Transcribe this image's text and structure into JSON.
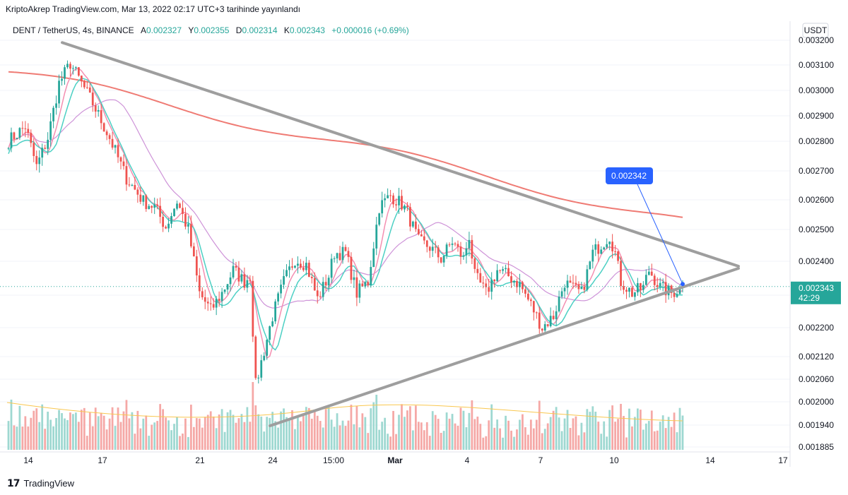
{
  "header": {
    "text": "KriptoAkrep TradingView.com, Mar 13, 2022 02:17 UTC+3 tarihinde yayınlandı"
  },
  "legend": {
    "symbol": "DENT / TetherUS, 4s, BINANCE",
    "open_label": "A",
    "open": "0.002327",
    "high_label": "Y",
    "high": "0.002355",
    "low_label": "D",
    "low": "0.002314",
    "close_label": "K",
    "close": "0.002343",
    "change": "+0.000016 (+0.69%)"
  },
  "axis": {
    "currency": "USDT"
  },
  "price_badge": {
    "value": "0.002343",
    "timer": "42:29"
  },
  "annotation": {
    "value": "0.002342"
  },
  "footer": {
    "brand": "TradingView"
  },
  "colors": {
    "up": "#26a69a",
    "down": "#ef5350",
    "trendline": "#9e9e9e",
    "ma_slow": "#ef7b74",
    "ma_mid": "#ce93d8",
    "accent": "#2962ff"
  },
  "chart_data": {
    "type": "candlestick",
    "y_ticks": [
      0.0032,
      0.0031,
      0.003,
      0.0029,
      0.0028,
      0.0027,
      0.0026,
      0.0025,
      0.0024,
      0.0023,
      0.0022,
      0.00212,
      0.00206,
      0.002,
      0.00194,
      0.001885
    ],
    "y_tick_labels": [
      "0.003200",
      "0.003100",
      "0.003000",
      "0.002900",
      "0.002800",
      "0.002700",
      "0.002600",
      "0.002500",
      "0.002400",
      "0.002300",
      "0.002200",
      "0.002120",
      "0.002060",
      "0.002000",
      "0.001940",
      "0.001885"
    ],
    "x_tick_labels": [
      "14",
      "17",
      "21",
      "24",
      "15:00",
      "Mar",
      "4",
      "7",
      "10",
      "14",
      "17"
    ],
    "triangle": {
      "upper_line": {
        "from": 0.003192,
        "to": 0.00238
      },
      "lower_line": {
        "from": 0.00194,
        "to": 0.00238
      }
    },
    "waypoints": [
      [
        0,
        0.00285
      ],
      [
        6,
        0.0029
      ],
      [
        10,
        0.00276
      ],
      [
        14,
        0.00286
      ],
      [
        18,
        0.00305
      ],
      [
        22,
        0.00312
      ],
      [
        26,
        0.00305
      ],
      [
        30,
        0.00298
      ],
      [
        36,
        0.00286
      ],
      [
        42,
        0.00272
      ],
      [
        48,
        0.00264
      ],
      [
        52,
        0.00262
      ],
      [
        56,
        0.00255
      ],
      [
        60,
        0.00264
      ],
      [
        64,
        0.00254
      ],
      [
        68,
        0.00232
      ],
      [
        72,
        0.00226
      ],
      [
        76,
        0.00232
      ],
      [
        80,
        0.0024
      ],
      [
        84,
        0.00236
      ],
      [
        86,
        0.00238
      ],
      [
        88,
        0.002
      ],
      [
        90,
        0.00208
      ],
      [
        94,
        0.00224
      ],
      [
        98,
        0.00236
      ],
      [
        102,
        0.00244
      ],
      [
        106,
        0.00242
      ],
      [
        110,
        0.0023
      ],
      [
        114,
        0.00238
      ],
      [
        116,
        0.00246
      ],
      [
        120,
        0.00246
      ],
      [
        124,
        0.00232
      ],
      [
        128,
        0.00236
      ],
      [
        132,
        0.00262
      ],
      [
        136,
        0.00266
      ],
      [
        140,
        0.00263
      ],
      [
        142,
        0.0026
      ],
      [
        146,
        0.0025
      ],
      [
        150,
        0.00248
      ],
      [
        154,
        0.00244
      ],
      [
        158,
        0.0025
      ],
      [
        162,
        0.00244
      ],
      [
        164,
        0.00252
      ],
      [
        166,
        0.00238
      ],
      [
        170,
        0.00232
      ],
      [
        174,
        0.0024
      ],
      [
        178,
        0.00238
      ],
      [
        182,
        0.00235
      ],
      [
        186,
        0.00228
      ],
      [
        190,
        0.0022
      ],
      [
        194,
        0.00224
      ],
      [
        198,
        0.00236
      ],
      [
        200,
        0.00234
      ],
      [
        204,
        0.00232
      ],
      [
        208,
        0.00246
      ],
      [
        212,
        0.0025
      ],
      [
        214,
        0.00252
      ],
      [
        216,
        0.00246
      ],
      [
        218,
        0.00236
      ],
      [
        222,
        0.00232
      ],
      [
        226,
        0.00234
      ],
      [
        228,
        0.0024
      ],
      [
        232,
        0.00234
      ],
      [
        236,
        0.00232
      ],
      [
        240,
        0.002343
      ]
    ]
  }
}
